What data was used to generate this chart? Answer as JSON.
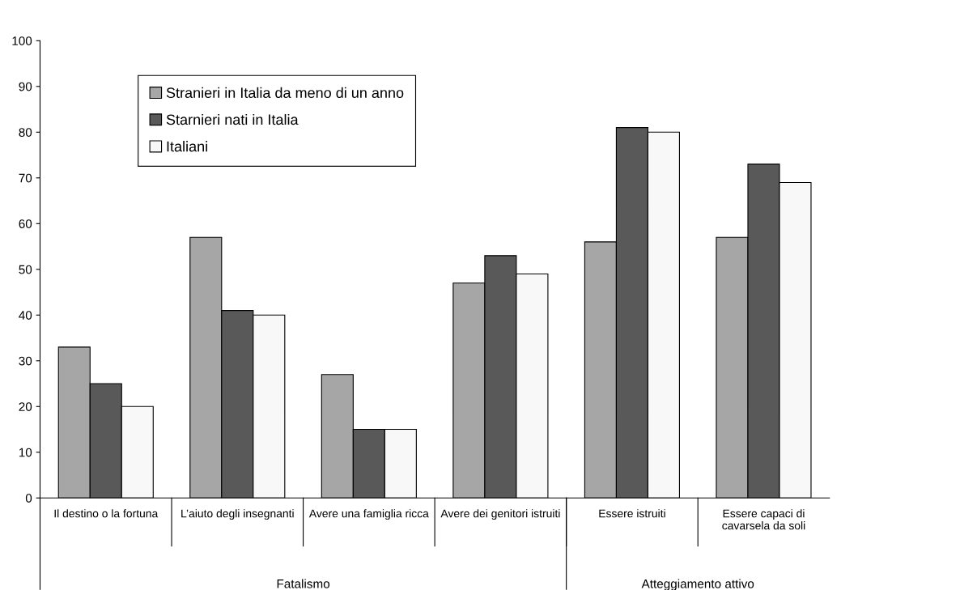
{
  "chart_data": {
    "type": "bar",
    "categories": [
      "Il destino o la fortuna",
      "L’aiuto degli insegnanti",
      "Avere una famiglia ricca",
      "Avere dei genitori istruiti",
      "Essere istruiti",
      "Essere capaci di\ncavarsela da soli"
    ],
    "series": [
      {
        "name": "Stranieri in Italia da meno di un anno",
        "color": "#a6a6a6",
        "values": [
          33,
          57,
          27,
          47,
          56,
          57
        ]
      },
      {
        "name": "Starnieri nati in Italia",
        "color": "#595959",
        "values": [
          25,
          41,
          15,
          53,
          81,
          73
        ]
      },
      {
        "name": "Italiani",
        "color": "#f8f8f8",
        "values": [
          20,
          40,
          15,
          49,
          80,
          69
        ]
      }
    ],
    "annotations": [
      "Fatalismo",
      "Atteggiamento attivo"
    ],
    "ylim": [
      0,
      100
    ],
    "yticks": [
      0,
      10,
      20,
      30,
      40,
      50,
      60,
      70,
      80,
      90,
      100
    ],
    "legend": "top left",
    "grid": false
  }
}
